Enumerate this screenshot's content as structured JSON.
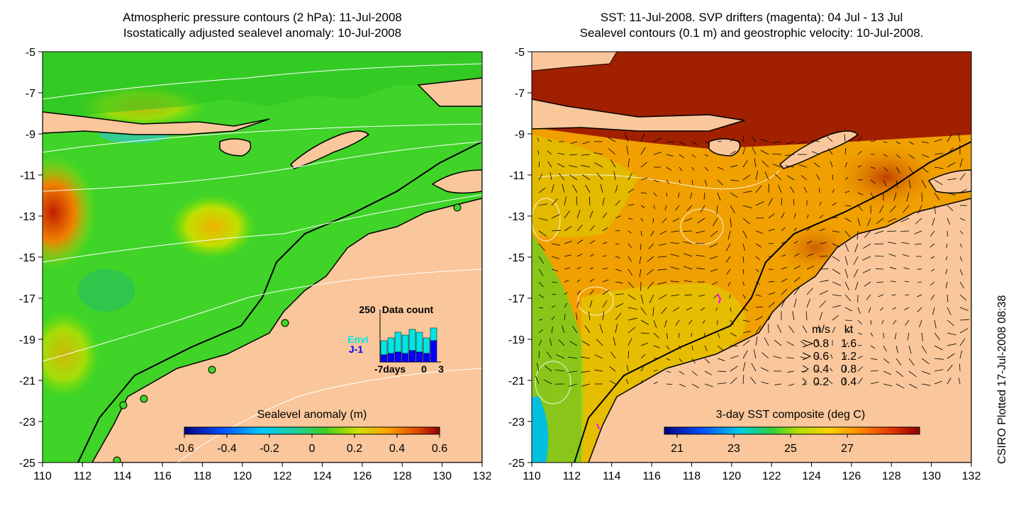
{
  "left_panel": {
    "title_line1": "Atmospheric pressure contours (2 hPa): 11-Jul-2008",
    "title_line2": "Isostatically adjusted sealevel anomaly: 10-Jul-2008",
    "colorbar_label": "Sealevel anomaly (m)",
    "colorbar_ticks": [
      "-0.6",
      "-0.4",
      "-0.2",
      "0",
      "0.2",
      "0.4",
      "0.6"
    ],
    "inset": {
      "max_label": "250",
      "title": "Data count",
      "legend": [
        {
          "label": "Envi",
          "color": "#00e5e5"
        },
        {
          "label": "J-1",
          "color": "#0000ff"
        }
      ],
      "x_labels": [
        "-7days",
        "0",
        "3"
      ]
    }
  },
  "right_panel": {
    "title_line1": "SST: 11-Jul-2008. SVP drifters (magenta): 04 Jul - 13 Jul",
    "title_line2": "Sealevel contours (0.1 m) and geostrophic velocity: 10-Jul-2008.",
    "colorbar_label": "3-day SST composite (deg C)",
    "colorbar_ticks": [
      "21",
      "23",
      "25",
      "27"
    ],
    "velocity_legend": {
      "header_ms": "m/s",
      "header_kt": "kt",
      "rows": [
        {
          "ms": "0.8",
          "kt": "1.6"
        },
        {
          "ms": "0.6",
          "kt": "1.2"
        },
        {
          "ms": "0.4",
          "kt": "0.8"
        },
        {
          "ms": "0.2",
          "kt": "0.4"
        }
      ]
    }
  },
  "axes": {
    "x_ticks": [
      "110",
      "112",
      "114",
      "116",
      "118",
      "120",
      "122",
      "124",
      "126",
      "128",
      "130",
      "132"
    ],
    "y_ticks": [
      "-5",
      "-7",
      "-9",
      "-11",
      "-13",
      "-15",
      "-17",
      "-19",
      "-21",
      "-23",
      "-25"
    ]
  },
  "credit": "CSIRO Plotted 17-Jul-2008 08:38",
  "colors": {
    "land": "#f9c79b",
    "ocean_green": "#3fd62a",
    "sst_orange": "#f0a000",
    "sst_red": "#a01000"
  }
}
